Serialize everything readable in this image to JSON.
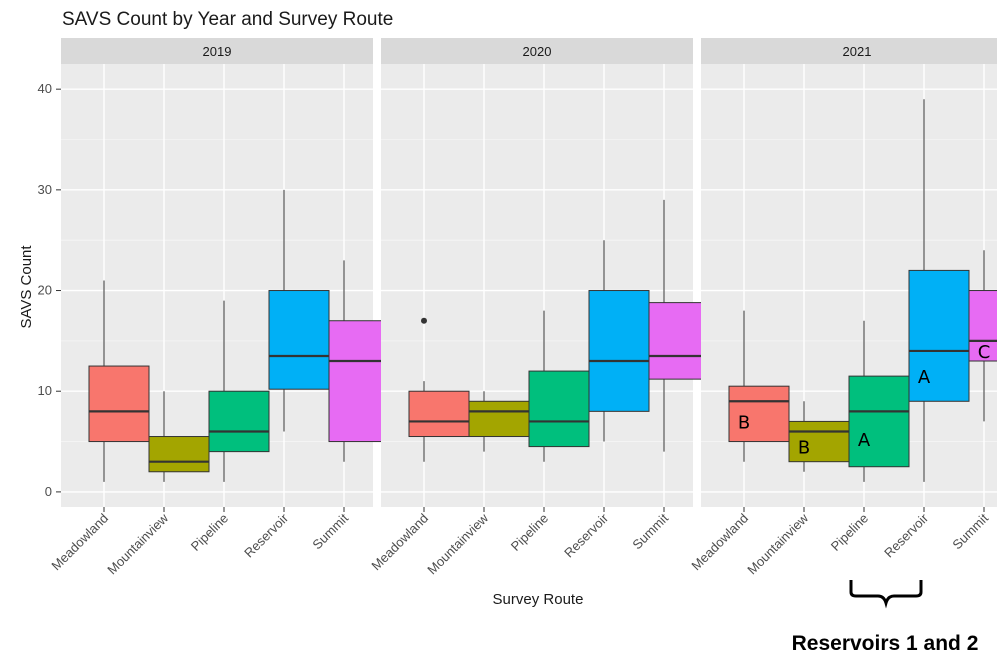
{
  "chart_data": {
    "type": "box",
    "title": "SAVS Count by Year and Survey Route",
    "xlabel": "Survey Route",
    "ylabel": "SAVS Count",
    "ylim": [
      -1.5,
      42.5
    ],
    "yticks": [
      0,
      10,
      20,
      30,
      40
    ],
    "grid": true,
    "categories": [
      "Meadowland",
      "Mountainview",
      "Pipeline",
      "Reservoir",
      "Summit"
    ],
    "colors": [
      "#F8766D",
      "#A3A500",
      "#00BF7D",
      "#00B0F6",
      "#E76BF3"
    ],
    "panels": [
      {
        "label": "2019",
        "boxes": [
          {
            "category": "Meadowland",
            "min": 1,
            "q1": 5,
            "median": 8,
            "q3": 12.5,
            "max": 21,
            "outliers": []
          },
          {
            "category": "Mountainview",
            "min": 1,
            "q1": 2,
            "median": 3,
            "q3": 5.5,
            "max": 10,
            "outliers": []
          },
          {
            "category": "Pipeline",
            "min": 1,
            "q1": 4,
            "median": 6,
            "q3": 10,
            "max": 19,
            "outliers": []
          },
          {
            "category": "Reservoir",
            "min": 6,
            "q1": 10.2,
            "median": 13.5,
            "q3": 20,
            "max": 30,
            "outliers": []
          },
          {
            "category": "Summit",
            "min": 3,
            "q1": 5,
            "median": 13,
            "q3": 17,
            "max": 23,
            "outliers": []
          }
        ]
      },
      {
        "label": "2020",
        "boxes": [
          {
            "category": "Meadowland",
            "min": 3,
            "q1": 5.5,
            "median": 7,
            "q3": 10,
            "max": 11,
            "outliers": [
              17
            ]
          },
          {
            "category": "Mountainview",
            "min": 4,
            "q1": 5.5,
            "median": 8,
            "q3": 9,
            "max": 10,
            "outliers": []
          },
          {
            "category": "Pipeline",
            "min": 3,
            "q1": 4.5,
            "median": 7,
            "q3": 12,
            "max": 18,
            "outliers": []
          },
          {
            "category": "Reservoir",
            "min": 5,
            "q1": 8,
            "median": 13,
            "q3": 20,
            "max": 25,
            "outliers": []
          },
          {
            "category": "Summit",
            "min": 4,
            "q1": 11.2,
            "median": 13.5,
            "q3": 18.8,
            "max": 29,
            "outliers": []
          }
        ]
      },
      {
        "label": "2021",
        "boxes": [
          {
            "category": "Meadowland",
            "min": 3,
            "q1": 5,
            "median": 9,
            "q3": 10.5,
            "max": 18,
            "outliers": [],
            "letter": "B"
          },
          {
            "category": "Mountainview",
            "min": 2,
            "q1": 3,
            "median": 6,
            "q3": 7,
            "max": 9,
            "outliers": [],
            "letter": "B"
          },
          {
            "category": "Pipeline",
            "min": 1,
            "q1": 2.5,
            "median": 8,
            "q3": 11.5,
            "max": 17,
            "outliers": [],
            "letter": "A"
          },
          {
            "category": "Reservoir",
            "min": 1,
            "q1": 9,
            "median": 14,
            "q3": 22,
            "max": 39,
            "outliers": [],
            "letter": "A"
          },
          {
            "category": "Summit",
            "min": 7,
            "q1": 13,
            "median": 15,
            "q3": 20,
            "max": 24,
            "outliers": [],
            "letter": "C"
          }
        ]
      }
    ],
    "tick_labels": [
      "Meadowland",
      "Mountainview",
      "Pipeline",
      "Reservoir",
      "Summit"
    ],
    "bracket_label": "Reservoirs 1 and 2"
  }
}
